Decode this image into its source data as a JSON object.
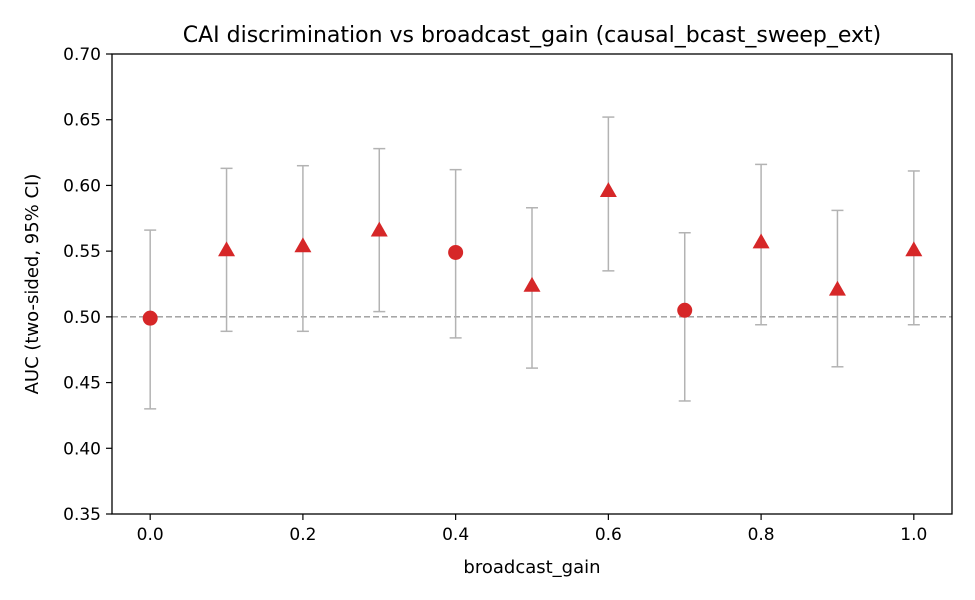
{
  "chart_data": {
    "type": "scatter",
    "title": "CAI discrimination vs broadcast_gain (causal_bcast_sweep_ext)",
    "xlabel": "broadcast_gain",
    "ylabel": "AUC (two-sided, 95% CI)",
    "xlim": [
      -0.05,
      1.05
    ],
    "ylim": [
      0.35,
      0.7
    ],
    "xticks": [
      0.0,
      0.2,
      0.4,
      0.6,
      0.8,
      1.0
    ],
    "xtick_labels": [
      "0.0",
      "0.2",
      "0.4",
      "0.6",
      "0.8",
      "1.0"
    ],
    "yticks": [
      0.35,
      0.4,
      0.45,
      0.5,
      0.55,
      0.6,
      0.65,
      0.7
    ],
    "ytick_labels": [
      "0.35",
      "0.40",
      "0.45",
      "0.50",
      "0.55",
      "0.60",
      "0.65",
      "0.70"
    ],
    "reference_line": {
      "y": 0.5,
      "style": "dashed",
      "color": "#999999"
    },
    "marker_color": "#d62728",
    "errorbar_color": "#b3b3b3",
    "grid": false,
    "points": [
      {
        "x": 0.0,
        "y": 0.499,
        "lo": 0.43,
        "hi": 0.566,
        "marker": "circle"
      },
      {
        "x": 0.1,
        "y": 0.551,
        "lo": 0.489,
        "hi": 0.613,
        "marker": "triangle"
      },
      {
        "x": 0.2,
        "y": 0.554,
        "lo": 0.489,
        "hi": 0.615,
        "marker": "triangle"
      },
      {
        "x": 0.3,
        "y": 0.566,
        "lo": 0.504,
        "hi": 0.628,
        "marker": "triangle"
      },
      {
        "x": 0.4,
        "y": 0.549,
        "lo": 0.484,
        "hi": 0.612,
        "marker": "circle"
      },
      {
        "x": 0.5,
        "y": 0.524,
        "lo": 0.461,
        "hi": 0.583,
        "marker": "triangle"
      },
      {
        "x": 0.6,
        "y": 0.596,
        "lo": 0.535,
        "hi": 0.652,
        "marker": "triangle"
      },
      {
        "x": 0.7,
        "y": 0.505,
        "lo": 0.436,
        "hi": 0.564,
        "marker": "circle"
      },
      {
        "x": 0.8,
        "y": 0.557,
        "lo": 0.494,
        "hi": 0.616,
        "marker": "triangle"
      },
      {
        "x": 0.9,
        "y": 0.521,
        "lo": 0.462,
        "hi": 0.581,
        "marker": "triangle"
      },
      {
        "x": 1.0,
        "y": 0.551,
        "lo": 0.494,
        "hi": 0.611,
        "marker": "triangle"
      }
    ]
  }
}
